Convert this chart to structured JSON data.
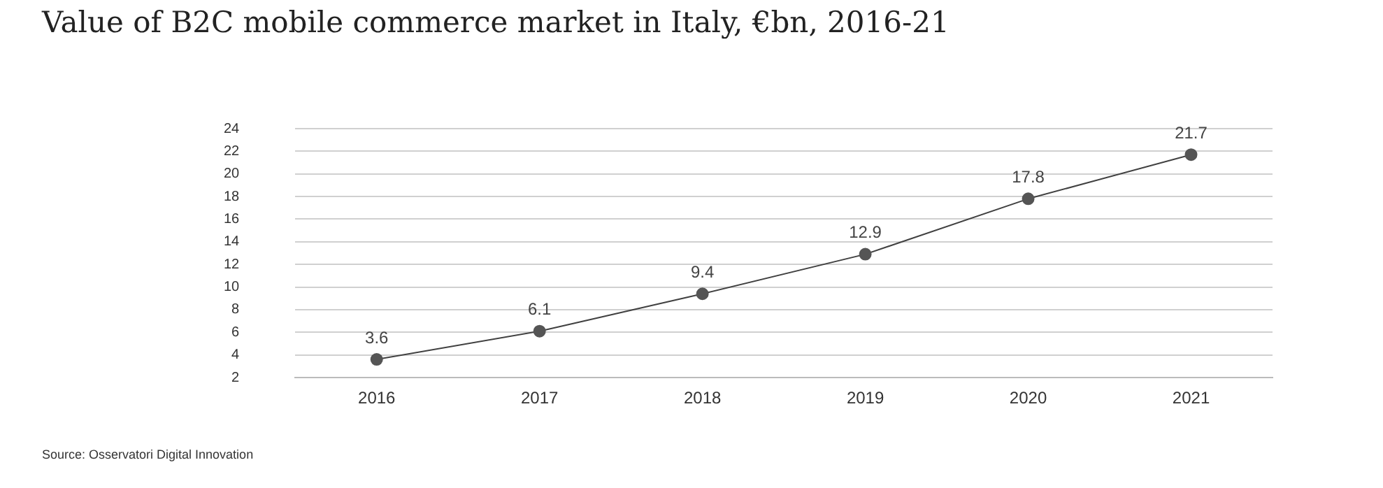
{
  "chart_data": {
    "type": "line",
    "title": "Value of B2C mobile commerce market in Italy, €bn, 2016-21",
    "categories": [
      "2016",
      "2017",
      "2018",
      "2019",
      "2020",
      "2021"
    ],
    "series": [
      {
        "color": "#404040",
        "values": [
          3.6,
          6.1,
          9.4,
          12.9,
          17.8,
          21.7
        ]
      }
    ],
    "ylim": [
      2,
      24
    ],
    "yticks": [
      2,
      4,
      6,
      8,
      10,
      12,
      14,
      16,
      18,
      20,
      22,
      24
    ],
    "grid": "y",
    "legend": false,
    "marker": "circle",
    "line_style": "solid",
    "data_labels": true,
    "annotations": [
      "Source: Osservatori Digital Innovation"
    ]
  }
}
